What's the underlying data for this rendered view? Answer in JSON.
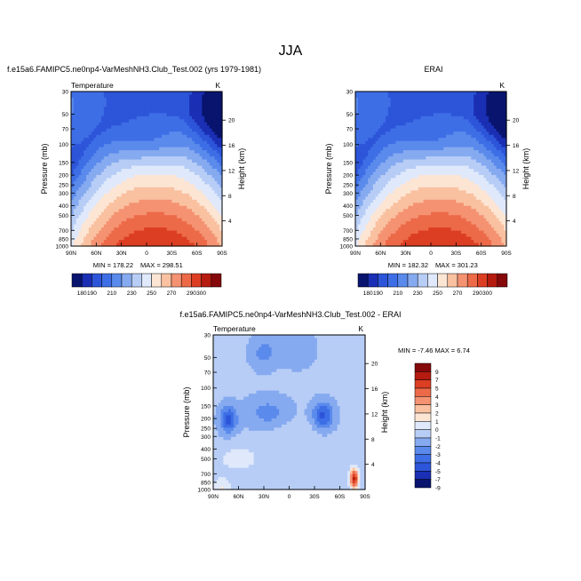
{
  "page_title": "JJA",
  "chart_data": [
    {
      "type": "heatmap",
      "title": "f.e15a6.FAMIPC5.ne0np4-VarMeshNH3.Club_Test.002 (yrs 1979-1981)",
      "field_label": "Temperature",
      "units": "K",
      "ylabel": "Pressure (mb)",
      "ylabel_right": "Height (km)",
      "x_ticks": [
        "90N",
        "60N",
        "30N",
        "0",
        "30S",
        "60S",
        "90S"
      ],
      "y_ticks": [
        30,
        50,
        70,
        100,
        150,
        200,
        250,
        300,
        400,
        500,
        700,
        850,
        1000
      ],
      "y_scale": "log",
      "height_ticks": [
        20,
        16,
        12,
        8,
        4
      ],
      "min_label": "MIN = 178.22",
      "max_label": "MAX = 298.51",
      "min": 178.22,
      "max": 298.51,
      "colorbar_levels": [
        180,
        190,
        200,
        210,
        220,
        230,
        240,
        250,
        260,
        270,
        280,
        290,
        300
      ],
      "colorbar_tick_labels": [
        "180",
        "190",
        "210",
        "230",
        "250",
        "270",
        "290",
        "300"
      ],
      "colorbar_orientation": "horizontal"
    },
    {
      "type": "heatmap",
      "title": "ERAI",
      "field_label": "",
      "units": "K",
      "ylabel": "Pressure (mb)",
      "ylabel_right": "Height (km)",
      "x_ticks": [
        "90N",
        "60N",
        "30N",
        "0",
        "30S",
        "60S",
        "90S"
      ],
      "y_ticks": [
        30,
        50,
        70,
        100,
        150,
        200,
        250,
        300,
        400,
        500,
        700,
        850,
        1000
      ],
      "y_scale": "log",
      "height_ticks": [
        20,
        16,
        12,
        8,
        4
      ],
      "min_label": "MIN = 182.32",
      "max_label": "MAX = 301.23",
      "min": 182.32,
      "max": 301.23,
      "colorbar_levels": [
        180,
        190,
        200,
        210,
        220,
        230,
        240,
        250,
        260,
        270,
        280,
        290,
        300
      ],
      "colorbar_tick_labels": [
        "180",
        "190",
        "210",
        "230",
        "250",
        "270",
        "290",
        "300"
      ],
      "colorbar_orientation": "horizontal"
    },
    {
      "type": "heatmap",
      "title": "f.e15a6.FAMIPC5.ne0np4-VarMeshNH3.Club_Test.002 - ERAI",
      "field_label": "Temperature",
      "units": "K",
      "ylabel": "Pressure (mb)",
      "ylabel_right": "Height (km)",
      "x_ticks": [
        "90N",
        "60N",
        "30N",
        "0",
        "30S",
        "60S",
        "90S"
      ],
      "y_ticks": [
        30,
        50,
        70,
        100,
        150,
        200,
        250,
        300,
        400,
        500,
        700,
        850,
        1000
      ],
      "y_scale": "log",
      "height_ticks": [
        20,
        16,
        12,
        8,
        4
      ],
      "minmax_label": "MIN = -7.46  MAX =  6.74",
      "min": -7.46,
      "max": 6.74,
      "colorbar_levels": [
        9,
        7,
        5,
        4,
        3,
        2,
        1,
        0,
        -1,
        -2,
        -3,
        -4,
        -5,
        -7,
        -9
      ],
      "colorbar_tick_labels": [
        "9",
        "7",
        "5",
        "4",
        "3",
        "2",
        "1",
        "0",
        "-1",
        "-2",
        "-3",
        "-4",
        "-5",
        "-7",
        "-9"
      ],
      "colorbar_orientation": "vertical"
    }
  ],
  "colors": {
    "absolute_ramp": [
      "#08146e",
      "#1a2fb4",
      "#2d55d9",
      "#3e6ee6",
      "#5a8aeb",
      "#86aaf0",
      "#b7cdf6",
      "#dfe9fb",
      "#fde5d4",
      "#f9c1a0",
      "#f49272",
      "#ec6a48",
      "#dc3e23",
      "#b51b0f",
      "#85080a"
    ],
    "diff_ramp": [
      "#85080a",
      "#b51b0f",
      "#dc3e23",
      "#ec6a48",
      "#f49272",
      "#f9c1a0",
      "#fde5d4",
      "#dfe9fb",
      "#b7cdf6",
      "#86aaf0",
      "#5a8aeb",
      "#3e6ee6",
      "#2d55d9",
      "#1a2fb4",
      "#08146e"
    ]
  }
}
